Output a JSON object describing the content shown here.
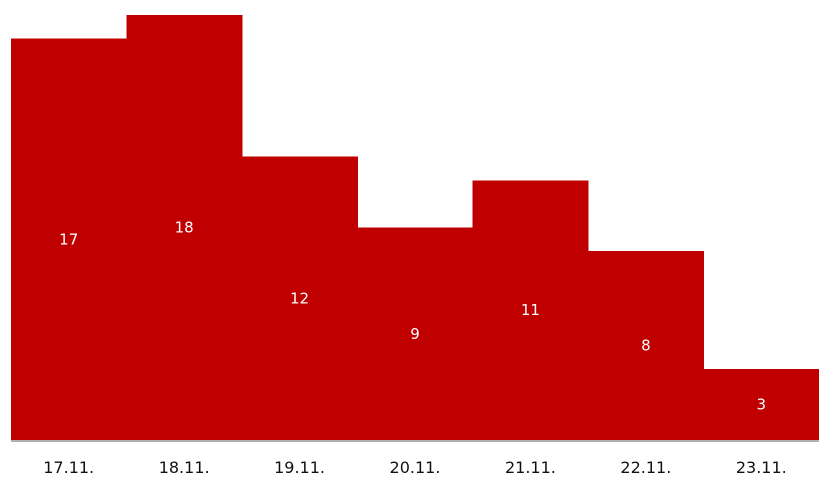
{
  "chart_data": {
    "type": "bar",
    "categories": [
      "17.11.",
      "18.11.",
      "19.11.",
      "20.11.",
      "21.11.",
      "22.11.",
      "23.11."
    ],
    "values": [
      17,
      18,
      12,
      9,
      11,
      8,
      3
    ],
    "data_labels": [
      "17",
      "18",
      "12",
      "9",
      "11",
      "8",
      "3"
    ],
    "title": "",
    "xlabel": "",
    "ylabel": "",
    "ylim": [
      0,
      18
    ],
    "grid": false,
    "legend": "none",
    "bar_color": "#c00000",
    "axis_color": "#b0b0b0"
  }
}
